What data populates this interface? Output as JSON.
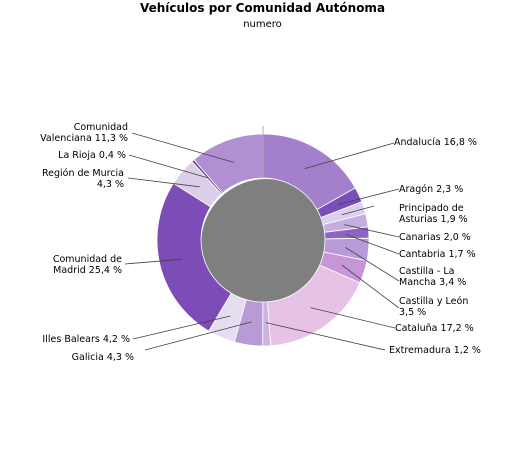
{
  "chart_data": {
    "type": "pie",
    "variant": "donut",
    "title": "Vehículos por Comunidad Autónoma",
    "subtitle": "numero",
    "legend": "none",
    "slices": [
      {
        "name": "Andalucía",
        "value": 16.8,
        "label": [
          "Andalucía 16,8 %"
        ],
        "color": "#a47fcb"
      },
      {
        "name": "Aragón",
        "value": 2.3,
        "label": [
          "Aragón 2,3 %"
        ],
        "color": "#7b4fb8"
      },
      {
        "name": "Principado de Asturias",
        "value": 1.9,
        "label": [
          "Principado de",
          "Asturias 1,9 %"
        ],
        "color": "#ddd0ec"
      },
      {
        "name": "Canarias",
        "value": 2.0,
        "label": [
          "Canarias 2,0 %"
        ],
        "color": "#c4aee0"
      },
      {
        "name": "Cantabria",
        "value": 1.7,
        "label": [
          "Cantabria 1,7 %"
        ],
        "color": "#8f63c2"
      },
      {
        "name": "Castilla - La Mancha",
        "value": 3.4,
        "label": [
          "Castilla - La",
          "Mancha 3,4 %"
        ],
        "color": "#b79ad8"
      },
      {
        "name": "Castilla y León",
        "value": 3.5,
        "label": [
          "Castilla y León",
          "3,5 %"
        ],
        "color": "#c896d6"
      },
      {
        "name": "Cataluña",
        "value": 17.2,
        "label": [
          "Cataluña 17,2 %"
        ],
        "color": "#e6c2e6"
      },
      {
        "name": "Extremadura",
        "value": 1.2,
        "label": [
          "Extremadura 1,2 %"
        ],
        "color": "#cdb2e2"
      },
      {
        "name": "Galicia",
        "value": 4.3,
        "label": [
          "Galicia 4,3 %"
        ],
        "color": "#b89ad6"
      },
      {
        "name": "Illes Balears",
        "value": 4.2,
        "label": [
          "Illes Balears 4,2 %"
        ],
        "color": "#e7ddf1"
      },
      {
        "name": "Comunidad de Madrid",
        "value": 25.4,
        "label": [
          "Comunidad de",
          "Madrid 25,4 %"
        ],
        "color": "#7c4db6"
      },
      {
        "name": "Región de Murcia",
        "value": 4.3,
        "label": [
          "Región de Murcia",
          "4,3 %"
        ],
        "color": "#dccde9"
      },
      {
        "name": "La Rioja",
        "value": 0.4,
        "label": [
          "La Rioja 0,4 %"
        ],
        "color": "#6a3fa3"
      },
      {
        "name": "Comunidad Valenciana",
        "value": 11.3,
        "label": [
          "Comunidad",
          "Valenciana 11,3 %"
        ],
        "color": "#b18fd3"
      }
    ]
  }
}
